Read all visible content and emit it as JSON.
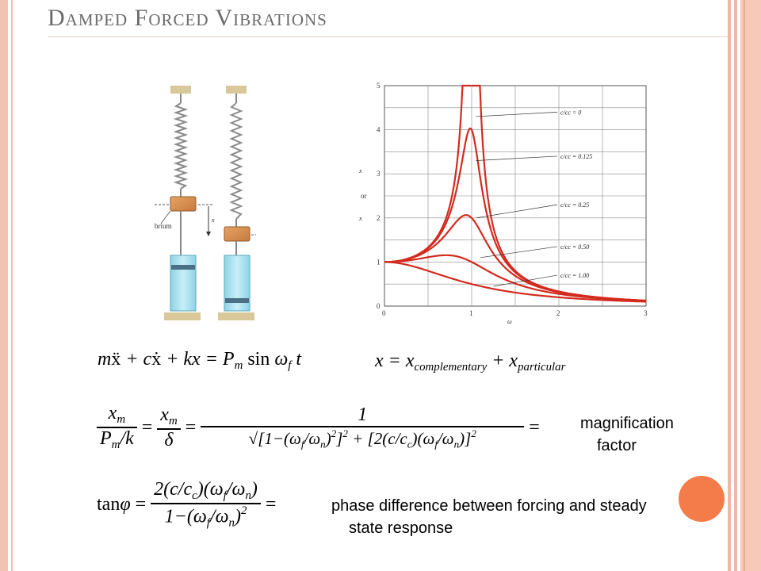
{
  "slide": {
    "title": "Damped Forced Vibrations"
  },
  "mechanism": {
    "equilibrium_label": "Equilibrium",
    "x_label": "x"
  },
  "plot": {
    "x_ticks": [
      "0",
      "1",
      "2",
      "3"
    ],
    "y_ticks": [
      "0",
      "1",
      "2",
      "3",
      "4",
      "5"
    ],
    "y_axis_label": "xm/(Pm/k) or xm/δm",
    "y_axis_or": "or",
    "x_axis_label": "ωf/ωn",
    "curve_labels": [
      "c/cc = 0",
      "c/cc = 0.125",
      "c/cc = 0.25",
      "c/cc = 0.50",
      "c/cc = 1.00"
    ],
    "curve_color": "#d42a1e"
  },
  "equations": {
    "eq1": "mẍ + cẋ + kx = Pm sin ωf t",
    "eq2": "x = xcomplementary + xparticular",
    "eq3": "xm/(Pm/k) = xm/δ = 1/√([1−(ωf/ωn)²]² + [2(c/cc)(ωf/ωn)]²)",
    "eq4": "tanφ = 2(c/cc)(ωf/ωn) / (1−(ωf/ωn)²)"
  },
  "notes": {
    "magnification_line1": "magnification",
    "magnification_line2": "factor",
    "phase_line1": "phase difference between forcing and steady",
    "phase_line2": "state response"
  },
  "colors": {
    "accent": "#f47c4a",
    "border": "#f2c3b4"
  }
}
